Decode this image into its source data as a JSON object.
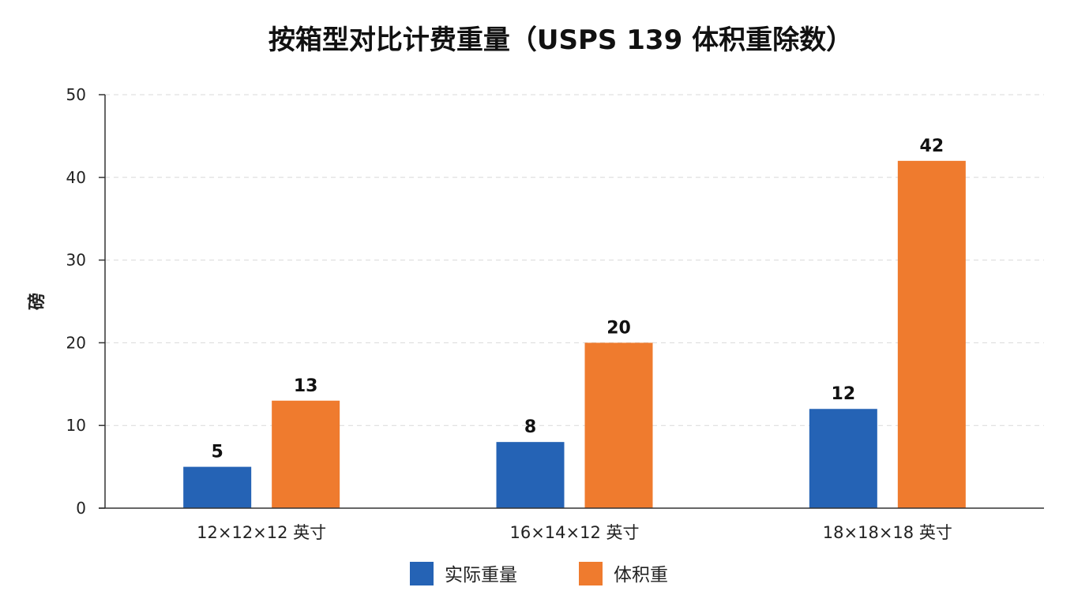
{
  "chart_data": {
    "type": "bar",
    "title": "按箱型对比计费重量（USPS 139 体积重除数）",
    "xlabel": "",
    "ylabel": "磅",
    "ylim": [
      0,
      50
    ],
    "yticks": [
      0,
      10,
      20,
      30,
      40,
      50
    ],
    "grid": true,
    "legend_position": "bottom",
    "categories": [
      "12×12×12 英寸",
      "16×14×12 英寸",
      "18×18×18 英寸"
    ],
    "series": [
      {
        "name": "实际重量",
        "color": "#2563b5",
        "values": [
          5,
          8,
          12
        ]
      },
      {
        "name": "体积重",
        "color": "#ef7b2e",
        "values": [
          13,
          20,
          42
        ]
      }
    ]
  }
}
